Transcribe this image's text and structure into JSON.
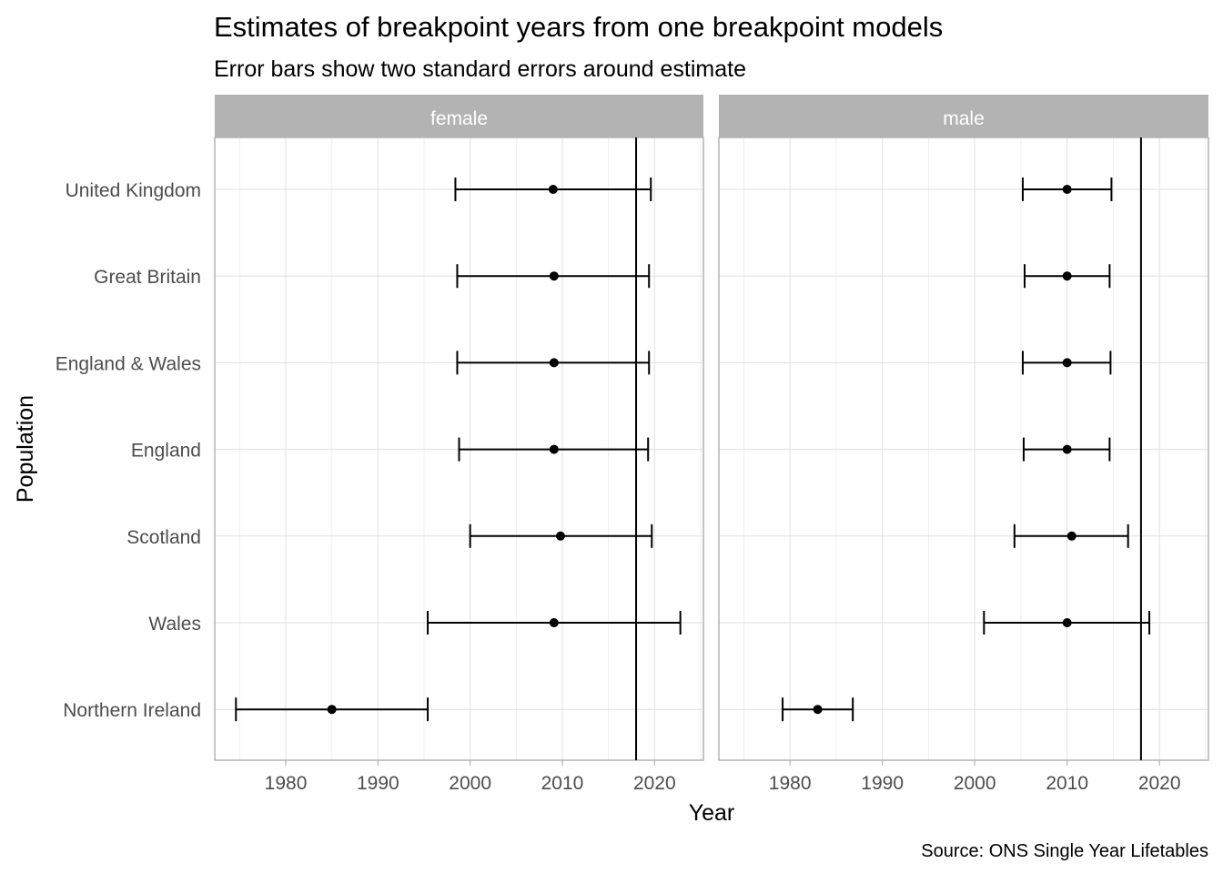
{
  "chart_data": {
    "type": "scatter",
    "title": "Estimates of breakpoint years from one breakpoint models",
    "subtitle": "Error bars show two standard errors around estimate",
    "xlabel": "Year",
    "ylabel": "Population",
    "caption": "Source: ONS Single Year Lifetables",
    "xlim": [
      1972.3,
      2025.3
    ],
    "x_ticks": [
      1980,
      1990,
      2000,
      2010,
      2020
    ],
    "x_tick_labels": [
      "1980",
      "1990",
      "2000",
      "2010",
      "2020"
    ],
    "reference_line_x": 2018,
    "grid": true,
    "categories": [
      "United Kingdom",
      "Great Britain",
      "England & Wales",
      "England",
      "Scotland",
      "Wales",
      "Northern Ireland"
    ],
    "colors": {
      "strip": "#b3b3b3",
      "strip_text": "#ffffff",
      "grid": "#e0e0e0",
      "panel_border": "#b3b3b3",
      "mark": "#000000",
      "axis_text": "#4d4d4d"
    },
    "facets": [
      {
        "label": "female",
        "estimates": [
          2009.0,
          2009.1,
          2009.1,
          2009.1,
          2009.8,
          2009.1,
          1985.0
        ],
        "lower": [
          1998.4,
          1998.6,
          1998.6,
          1998.8,
          2000.0,
          1995.4,
          1974.6
        ],
        "upper": [
          2019.6,
          2019.4,
          2019.4,
          2019.3,
          2019.7,
          2022.8,
          1995.4
        ]
      },
      {
        "label": "male",
        "estimates": [
          2010.0,
          2010.0,
          2010.0,
          2010.0,
          2010.5,
          2010.0,
          1983.0
        ],
        "lower": [
          2005.2,
          2005.4,
          2005.2,
          2005.3,
          2004.3,
          2001.0,
          1979.2
        ],
        "upper": [
          2014.8,
          2014.6,
          2014.7,
          2014.6,
          2016.6,
          2018.9,
          1986.8
        ]
      }
    ]
  }
}
